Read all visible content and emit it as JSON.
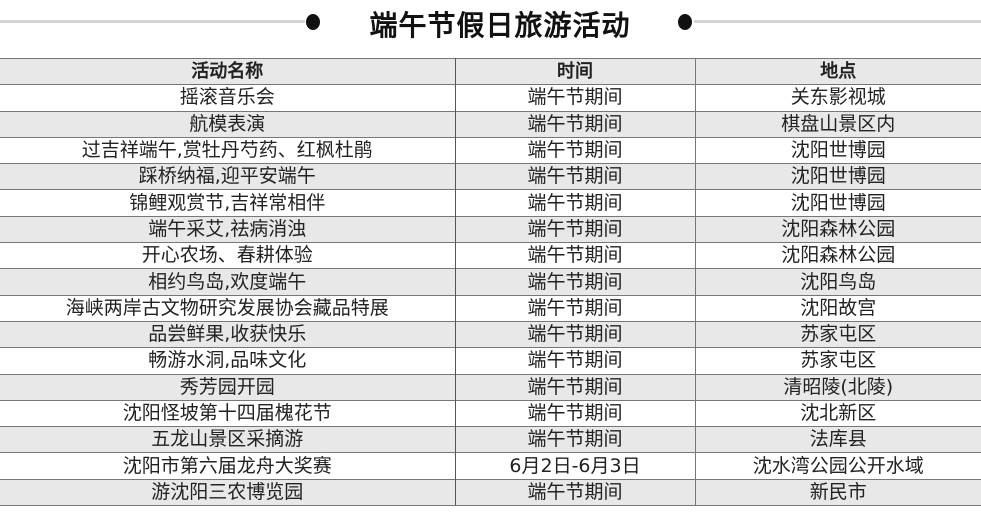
{
  "title": "端午节假日旅游活动",
  "columns": [
    "活动名称",
    "时间",
    "地点"
  ],
  "rows": [
    [
      "摇滚音乐会",
      "端午节期间",
      "关东影视城"
    ],
    [
      "航模表演",
      "端午节期间",
      "棋盘山景区内"
    ],
    [
      "过吉祥端午,赏牡丹芍药、红枫杜鹃",
      "端午节期间",
      "沈阳世博园"
    ],
    [
      "踩桥纳福,迎平安端午",
      "端午节期间",
      "沈阳世博园"
    ],
    [
      "锦鲤观赏节,吉祥常相伴",
      "端午节期间",
      "沈阳世博园"
    ],
    [
      "端午采艾,祛病消浊",
      "端午节期间",
      "沈阳森林公园"
    ],
    [
      "开心农场、春耕体验",
      "端午节期间",
      "沈阳森林公园"
    ],
    [
      "相约鸟岛,欢度端午",
      "端午节期间",
      "沈阳鸟岛"
    ],
    [
      "海峡两岸古文物研究发展协会藏品特展",
      "端午节期间",
      "沈阳故宫"
    ],
    [
      "品尝鲜果,收获快乐",
      "端午节期间",
      "苏家屯区"
    ],
    [
      "畅游水洞,品味文化",
      "端午节期间",
      "苏家屯区"
    ],
    [
      "秀芳园开园",
      "端午节期间",
      "清昭陵(北陵)"
    ],
    [
      "沈阳怪坡第十四届槐花节",
      "端午节期间",
      "沈北新区"
    ],
    [
      "五龙山景区采摘游",
      "端午节期间",
      "法库县"
    ],
    [
      "沈阳市第六届龙舟大奖赛",
      "6月2日-6月3日",
      "沈水湾公园公开水域"
    ],
    [
      "游沈阳三农博览园",
      "端午节期间",
      "新民市"
    ]
  ]
}
